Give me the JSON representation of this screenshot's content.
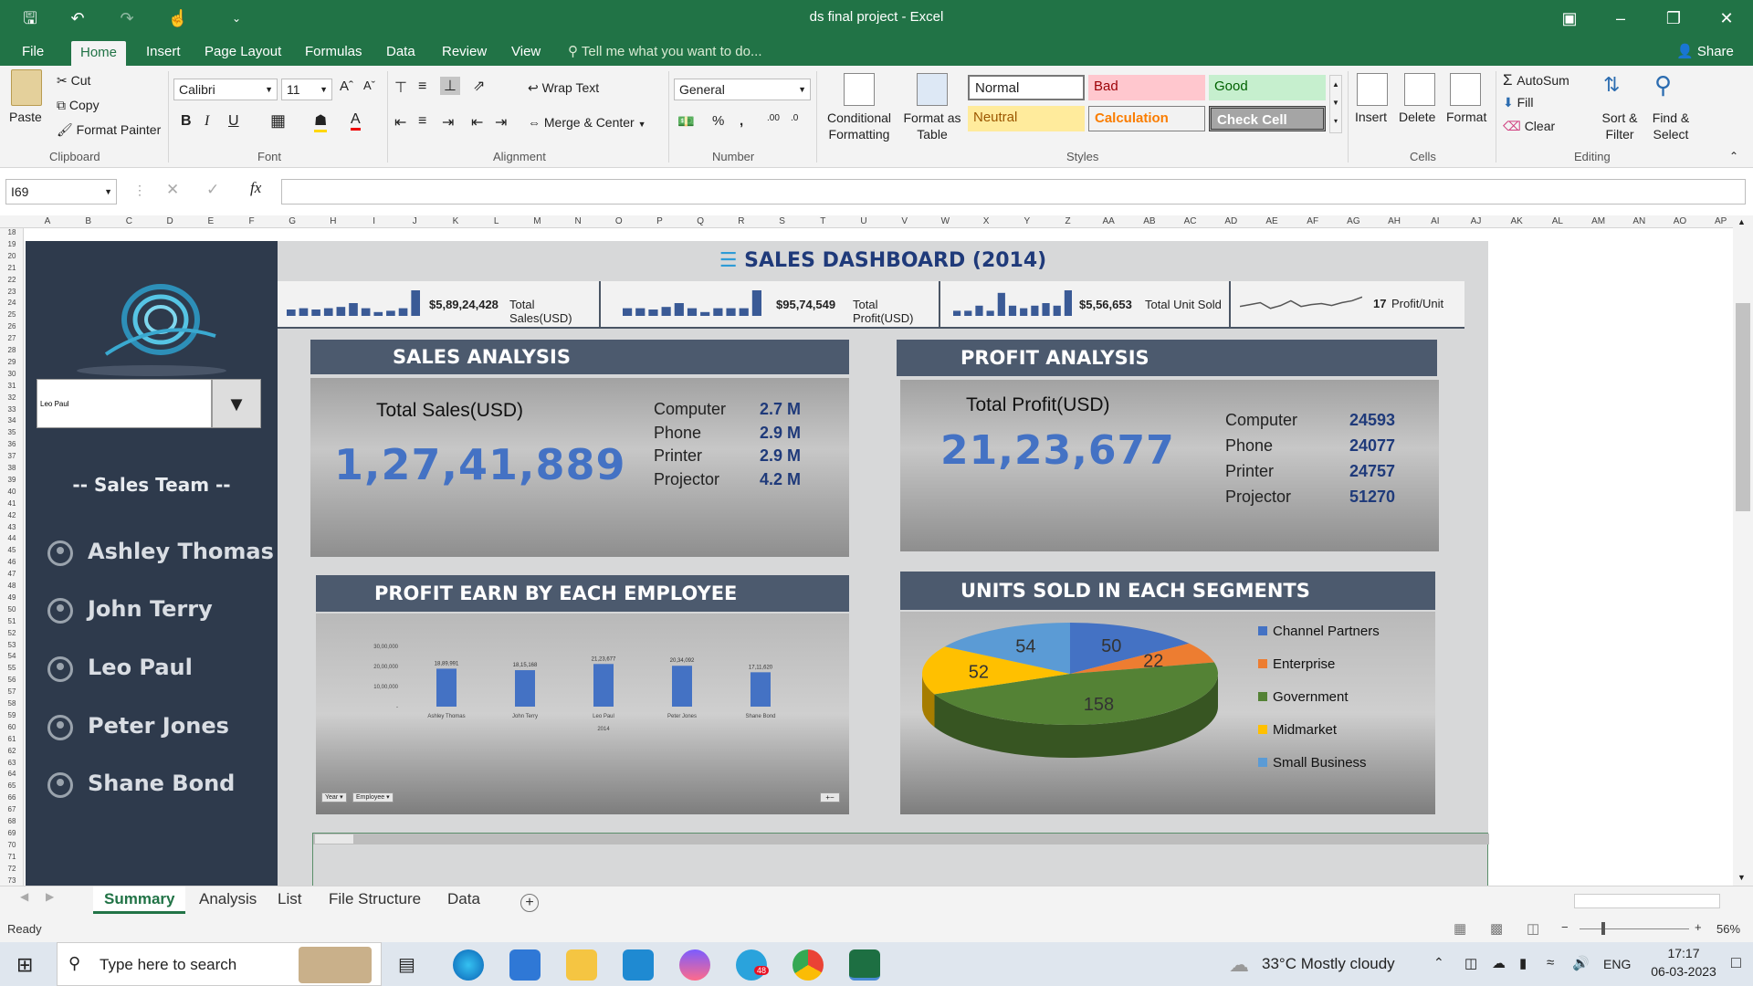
{
  "app": {
    "window_title": "ds final project  -  Excel",
    "share_label": "Share",
    "tell_me": "Tell me what you want to do..."
  },
  "ribbon_tabs": [
    "File",
    "Home",
    "Insert",
    "Page Layout",
    "Formulas",
    "Data",
    "Review",
    "View"
  ],
  "ribbon": {
    "clipboard": {
      "paste": "Paste",
      "cut": "Cut",
      "copy": "Copy",
      "format_painter": "Format Painter",
      "label": "Clipboard"
    },
    "font": {
      "name": "Calibri",
      "size": "11",
      "label": "Font"
    },
    "alignment": {
      "wrap_text": "Wrap Text",
      "merge_center": "Merge & Center",
      "label": "Alignment"
    },
    "number": {
      "format": "General",
      "label": "Number"
    },
    "styles": {
      "conditional_formatting": "Conditional Formatting",
      "format_as_table": "Format as Table",
      "cells": [
        "Normal",
        "Bad",
        "Good",
        "Neutral",
        "Calculation",
        "Check Cell"
      ],
      "label": "Styles"
    },
    "cells": {
      "insert": "Insert",
      "delete": "Delete",
      "format": "Format",
      "label": "Cells"
    },
    "editing": {
      "autosum": "AutoSum",
      "fill": "Fill",
      "clear": "Clear",
      "sort_filter": "Sort & Filter",
      "find_select": "Find & Select",
      "label": "Editing"
    }
  },
  "formula_bar": {
    "name_box": "I69",
    "formula": "",
    "fx": "fx"
  },
  "columns": [
    "A",
    "B",
    "C",
    "D",
    "E",
    "F",
    "G",
    "H",
    "I",
    "J",
    "K",
    "L",
    "M",
    "N",
    "O",
    "P",
    "Q",
    "R",
    "S",
    "T",
    "U",
    "V",
    "W",
    "X",
    "Y",
    "Z",
    "AA",
    "AB",
    "AC",
    "AD",
    "AE",
    "AF",
    "AG",
    "AH",
    "AI",
    "AJ",
    "AK",
    "AL",
    "AM",
    "AN",
    "AO",
    "AP"
  ],
  "rows": [
    "18",
    "19",
    "20",
    "21",
    "22",
    "23",
    "24",
    "25",
    "26",
    "27",
    "28",
    "29",
    "30",
    "31",
    "32",
    "33",
    "34",
    "35",
    "36",
    "37",
    "38",
    "39",
    "40",
    "41",
    "42",
    "43",
    "44",
    "45",
    "46",
    "47",
    "48",
    "49",
    "50",
    "51",
    "52",
    "53",
    "54",
    "55",
    "56",
    "57",
    "58",
    "59",
    "60",
    "61",
    "62",
    "63",
    "64",
    "65",
    "66",
    "67",
    "68",
    "69",
    "70",
    "71",
    "72",
    "73"
  ],
  "sidebar": {
    "selected_employee": "Leo Paul",
    "team_heading": "-- Sales Team --",
    "team": [
      "Ashley Thomas",
      "John Terry",
      "Leo Paul",
      "Peter Jones",
      "Shane Bond"
    ]
  },
  "dashboard": {
    "title": "SALES DASHBOARD (2014)",
    "kpis": [
      {
        "value": "$5,89,24,428",
        "label": "Total Sales(USD)",
        "spark": [
          0.25,
          0.3,
          0.25,
          0.3,
          0.35,
          0.5,
          0.3,
          0.15,
          0.2,
          0.3,
          1.0
        ]
      },
      {
        "value": "$95,74,549",
        "label": "Total Profit(USD)",
        "spark": [
          0.3,
          0.3,
          0.25,
          0.35,
          0.5,
          0.3,
          0.15,
          0.3,
          0.3,
          0.3,
          1.0
        ]
      },
      {
        "value": "$5,56,653",
        "label": "Total Unit Sold",
        "spark": [
          0.2,
          0.2,
          0.4,
          0.2,
          0.9,
          0.4,
          0.3,
          0.4,
          0.5,
          0.4,
          1.0
        ]
      },
      {
        "value": "17",
        "label": "Profit/Unit",
        "spark": [
          0.4,
          0.5,
          0.6,
          0.3,
          0.45,
          0.7,
          0.4,
          0.5,
          0.55,
          0.45,
          0.6,
          0.7,
          0.9
        ]
      }
    ],
    "sales": {
      "heading": "SALES ANALYSIS",
      "total_label": "Total Sales(USD)",
      "total": "1,27,41,889",
      "items": [
        {
          "name": "Computer",
          "value": "2.7 M"
        },
        {
          "name": "Phone",
          "value": "2.9 M"
        },
        {
          "name": "Printer",
          "value": "2.9 M"
        },
        {
          "name": "Projector",
          "value": "4.2 M"
        }
      ]
    },
    "profit": {
      "heading": "PROFIT ANALYSIS",
      "total_label": "Total Profit(USD)",
      "total": "21,23,677",
      "items": [
        {
          "name": "Computer",
          "value": "24593"
        },
        {
          "name": "Phone",
          "value": "24077"
        },
        {
          "name": "Printer",
          "value": "24757"
        },
        {
          "name": "Projector",
          "value": "51270"
        }
      ]
    },
    "employee_chart_heading": "PROFIT EARN BY EACH EMPLOYEE",
    "segment_chart_heading": "UNITS SOLD IN EACH SEGMENTS",
    "pivot_buttons": [
      "Year",
      "Employee"
    ]
  },
  "chart_data": [
    {
      "type": "bar",
      "title": "",
      "categories": [
        "Ashley Thomas",
        "John Terry",
        "Leo Paul",
        "Peter Jones",
        "Shane Bond"
      ],
      "values": [
        1889991,
        1815168,
        2123677,
        2034092,
        1711620
      ],
      "data_labels": [
        "18,89,991",
        "18,15,168",
        "21,23,677",
        "20,34,092",
        "17,11,620"
      ],
      "y_ticks": [
        "30,00,000",
        "20,00,000",
        "10,00,000",
        "-"
      ],
      "ylim": [
        0,
        3000000
      ],
      "xlabel": "2014",
      "color": "#4472c4"
    },
    {
      "type": "pie",
      "title": "",
      "categories": [
        "Channel Partners",
        "Enterprise",
        "Government",
        "Midmarket",
        "Small Business"
      ],
      "values": [
        50,
        22,
        158,
        52,
        54
      ],
      "colors": [
        "#4472c4",
        "#ed7d31",
        "#548235",
        "#ffc000",
        "#5b9bd5"
      ],
      "legend": "right"
    }
  ],
  "sheet_tabs": [
    "Summary",
    "Analysis",
    "List",
    "File Structure",
    "Data"
  ],
  "active_sheet": "Summary",
  "status": {
    "ready": "Ready",
    "zoom": "56%"
  },
  "taskbar": {
    "search_placeholder": "Type here to search",
    "weather": "33°C  Mostly cloudy",
    "lang": "ENG",
    "time": "17:17",
    "date": "06-03-2023",
    "telegram_badge": "48"
  }
}
